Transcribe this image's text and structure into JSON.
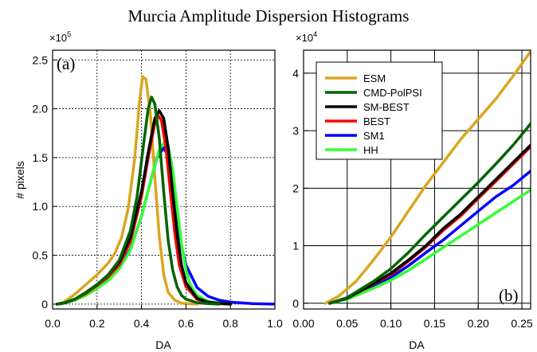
{
  "title": "Murcia Amplitude Dispersion Histograms",
  "colors": {
    "ESM": "#DAA520",
    "CMD-PolPSI": "#006400",
    "SM-BEST": "#000000",
    "BEST": "#FF0000",
    "SM1": "#0000FF",
    "HH": "#32FF32"
  },
  "chart_data": [
    {
      "type": "line",
      "panel_label": "(a)",
      "xlabel": "DA",
      "ylabel": "# pixels",
      "multiplier_base": "×10",
      "multiplier_exp": "5",
      "xlim": [
        0.0,
        1.0
      ],
      "ylim": [
        -0.05,
        2.6
      ],
      "x_ticks": [
        "0.0",
        "0.2",
        "0.4",
        "0.6",
        "0.8",
        "1.0"
      ],
      "y_ticks": [
        "0",
        "0.5",
        "1.0",
        "1.5",
        "2.0",
        "2.5"
      ],
      "grid": "dotted",
      "series": [
        {
          "name": "ESM",
          "x": [
            0.02,
            0.05,
            0.1,
            0.15,
            0.2,
            0.25,
            0.28,
            0.31,
            0.34,
            0.37,
            0.39,
            0.405,
            0.42,
            0.44,
            0.46,
            0.48,
            0.5,
            0.52,
            0.55,
            0.58,
            0.6,
            0.65
          ],
          "y": [
            0,
            0.02,
            0.1,
            0.2,
            0.3,
            0.42,
            0.52,
            0.68,
            0.98,
            1.5,
            2.05,
            2.33,
            2.3,
            1.95,
            1.3,
            0.7,
            0.3,
            0.12,
            0.04,
            0.01,
            0.005,
            0
          ]
        },
        {
          "name": "CMD-PolPSI",
          "x": [
            0.02,
            0.05,
            0.1,
            0.15,
            0.2,
            0.25,
            0.3,
            0.35,
            0.38,
            0.41,
            0.43,
            0.445,
            0.46,
            0.48,
            0.5,
            0.52,
            0.54,
            0.56,
            0.58,
            0.6,
            0.65,
            0.7,
            0.75
          ],
          "y": [
            0,
            0.01,
            0.05,
            0.12,
            0.2,
            0.3,
            0.45,
            0.75,
            1.1,
            1.65,
            2.0,
            2.12,
            2.05,
            1.7,
            1.15,
            0.65,
            0.35,
            0.18,
            0.09,
            0.05,
            0.015,
            0.005,
            0
          ]
        },
        {
          "name": "SM-BEST",
          "x": [
            0.02,
            0.05,
            0.1,
            0.15,
            0.2,
            0.25,
            0.3,
            0.35,
            0.4,
            0.43,
            0.46,
            0.48,
            0.5,
            0.52,
            0.54,
            0.56,
            0.58,
            0.6,
            0.65,
            0.7,
            0.75,
            0.8
          ],
          "y": [
            0,
            0.01,
            0.05,
            0.12,
            0.2,
            0.3,
            0.43,
            0.68,
            1.15,
            1.55,
            1.9,
            1.98,
            1.9,
            1.6,
            1.15,
            0.72,
            0.4,
            0.22,
            0.06,
            0.02,
            0.008,
            0
          ]
        },
        {
          "name": "BEST",
          "x": [
            0.02,
            0.05,
            0.1,
            0.15,
            0.2,
            0.25,
            0.3,
            0.35,
            0.4,
            0.43,
            0.46,
            0.475,
            0.49,
            0.51,
            0.53,
            0.55,
            0.57,
            0.6,
            0.65,
            0.7,
            0.75,
            0.8
          ],
          "y": [
            0,
            0.01,
            0.05,
            0.11,
            0.19,
            0.28,
            0.4,
            0.64,
            1.1,
            1.5,
            1.85,
            1.93,
            1.88,
            1.6,
            1.15,
            0.72,
            0.4,
            0.18,
            0.05,
            0.015,
            0.005,
            0
          ]
        },
        {
          "name": "SM1",
          "x": [
            0.02,
            0.05,
            0.1,
            0.15,
            0.2,
            0.25,
            0.3,
            0.35,
            0.4,
            0.44,
            0.47,
            0.5,
            0.52,
            0.54,
            0.56,
            0.58,
            0.6,
            0.65,
            0.7,
            0.75,
            0.8,
            0.9,
            1.0
          ],
          "y": [
            0,
            0.01,
            0.04,
            0.1,
            0.17,
            0.25,
            0.37,
            0.56,
            0.9,
            1.25,
            1.5,
            1.6,
            1.52,
            1.25,
            0.9,
            0.6,
            0.4,
            0.17,
            0.08,
            0.04,
            0.02,
            0.005,
            0
          ]
        },
        {
          "name": "HH",
          "x": [
            0.02,
            0.05,
            0.1,
            0.15,
            0.2,
            0.25,
            0.3,
            0.35,
            0.4,
            0.44,
            0.48,
            0.505,
            0.52,
            0.54,
            0.56,
            0.58,
            0.6,
            0.62,
            0.65,
            0.7,
            0.75,
            0.8
          ],
          "y": [
            0,
            0.01,
            0.04,
            0.09,
            0.16,
            0.24,
            0.36,
            0.55,
            0.9,
            1.25,
            1.58,
            1.66,
            1.62,
            1.38,
            1.0,
            0.62,
            0.35,
            0.2,
            0.09,
            0.03,
            0.01,
            0
          ]
        }
      ]
    },
    {
      "type": "line",
      "panel_label": "(b)",
      "xlabel": "DA",
      "ylabel": "",
      "multiplier_base": "×10",
      "multiplier_exp": "4",
      "xlim": [
        0.0,
        0.26
      ],
      "ylim": [
        -0.1,
        4.4
      ],
      "x_ticks": [
        "0.00",
        "0.05",
        "0.10",
        "0.15",
        "0.20",
        "0.25"
      ],
      "y_ticks": [
        "0",
        "1",
        "2",
        "3",
        "4"
      ],
      "grid": "solid",
      "legend_position": "top-left",
      "series": [
        {
          "name": "ESM",
          "x": [
            0.025,
            0.04,
            0.06,
            0.08,
            0.1,
            0.12,
            0.14,
            0.16,
            0.18,
            0.2,
            0.22,
            0.24,
            0.26
          ],
          "y": [
            0,
            0.12,
            0.38,
            0.75,
            1.15,
            1.6,
            2.05,
            2.45,
            2.85,
            3.2,
            3.55,
            3.95,
            4.38
          ]
        },
        {
          "name": "CMD-PolPSI",
          "x": [
            0.03,
            0.05,
            0.08,
            0.1,
            0.12,
            0.14,
            0.16,
            0.18,
            0.2,
            0.22,
            0.24,
            0.26
          ],
          "y": [
            0,
            0.1,
            0.38,
            0.6,
            0.88,
            1.2,
            1.5,
            1.8,
            2.1,
            2.42,
            2.75,
            3.12
          ]
        },
        {
          "name": "SM-BEST",
          "x": [
            0.03,
            0.05,
            0.08,
            0.1,
            0.12,
            0.14,
            0.16,
            0.18,
            0.2,
            0.22,
            0.24,
            0.26
          ],
          "y": [
            0,
            0.09,
            0.34,
            0.52,
            0.75,
            1.0,
            1.3,
            1.55,
            1.85,
            2.15,
            2.45,
            2.75
          ]
        },
        {
          "name": "BEST",
          "x": [
            0.03,
            0.05,
            0.08,
            0.1,
            0.12,
            0.14,
            0.16,
            0.18,
            0.2,
            0.22,
            0.24,
            0.26
          ],
          "y": [
            0,
            0.09,
            0.33,
            0.5,
            0.73,
            0.98,
            1.27,
            1.52,
            1.82,
            2.12,
            2.42,
            2.72
          ]
        },
        {
          "name": "SM1",
          "x": [
            0.03,
            0.05,
            0.08,
            0.1,
            0.12,
            0.14,
            0.16,
            0.18,
            0.2,
            0.22,
            0.24,
            0.26
          ],
          "y": [
            0,
            0.08,
            0.3,
            0.45,
            0.65,
            0.88,
            1.1,
            1.35,
            1.6,
            1.85,
            2.05,
            2.3
          ]
        },
        {
          "name": "HH",
          "x": [
            0.03,
            0.05,
            0.08,
            0.1,
            0.12,
            0.14,
            0.16,
            0.18,
            0.2,
            0.22,
            0.24,
            0.26
          ],
          "y": [
            0,
            0.07,
            0.26,
            0.4,
            0.57,
            0.77,
            0.97,
            1.17,
            1.37,
            1.57,
            1.77,
            1.97
          ]
        }
      ]
    }
  ]
}
